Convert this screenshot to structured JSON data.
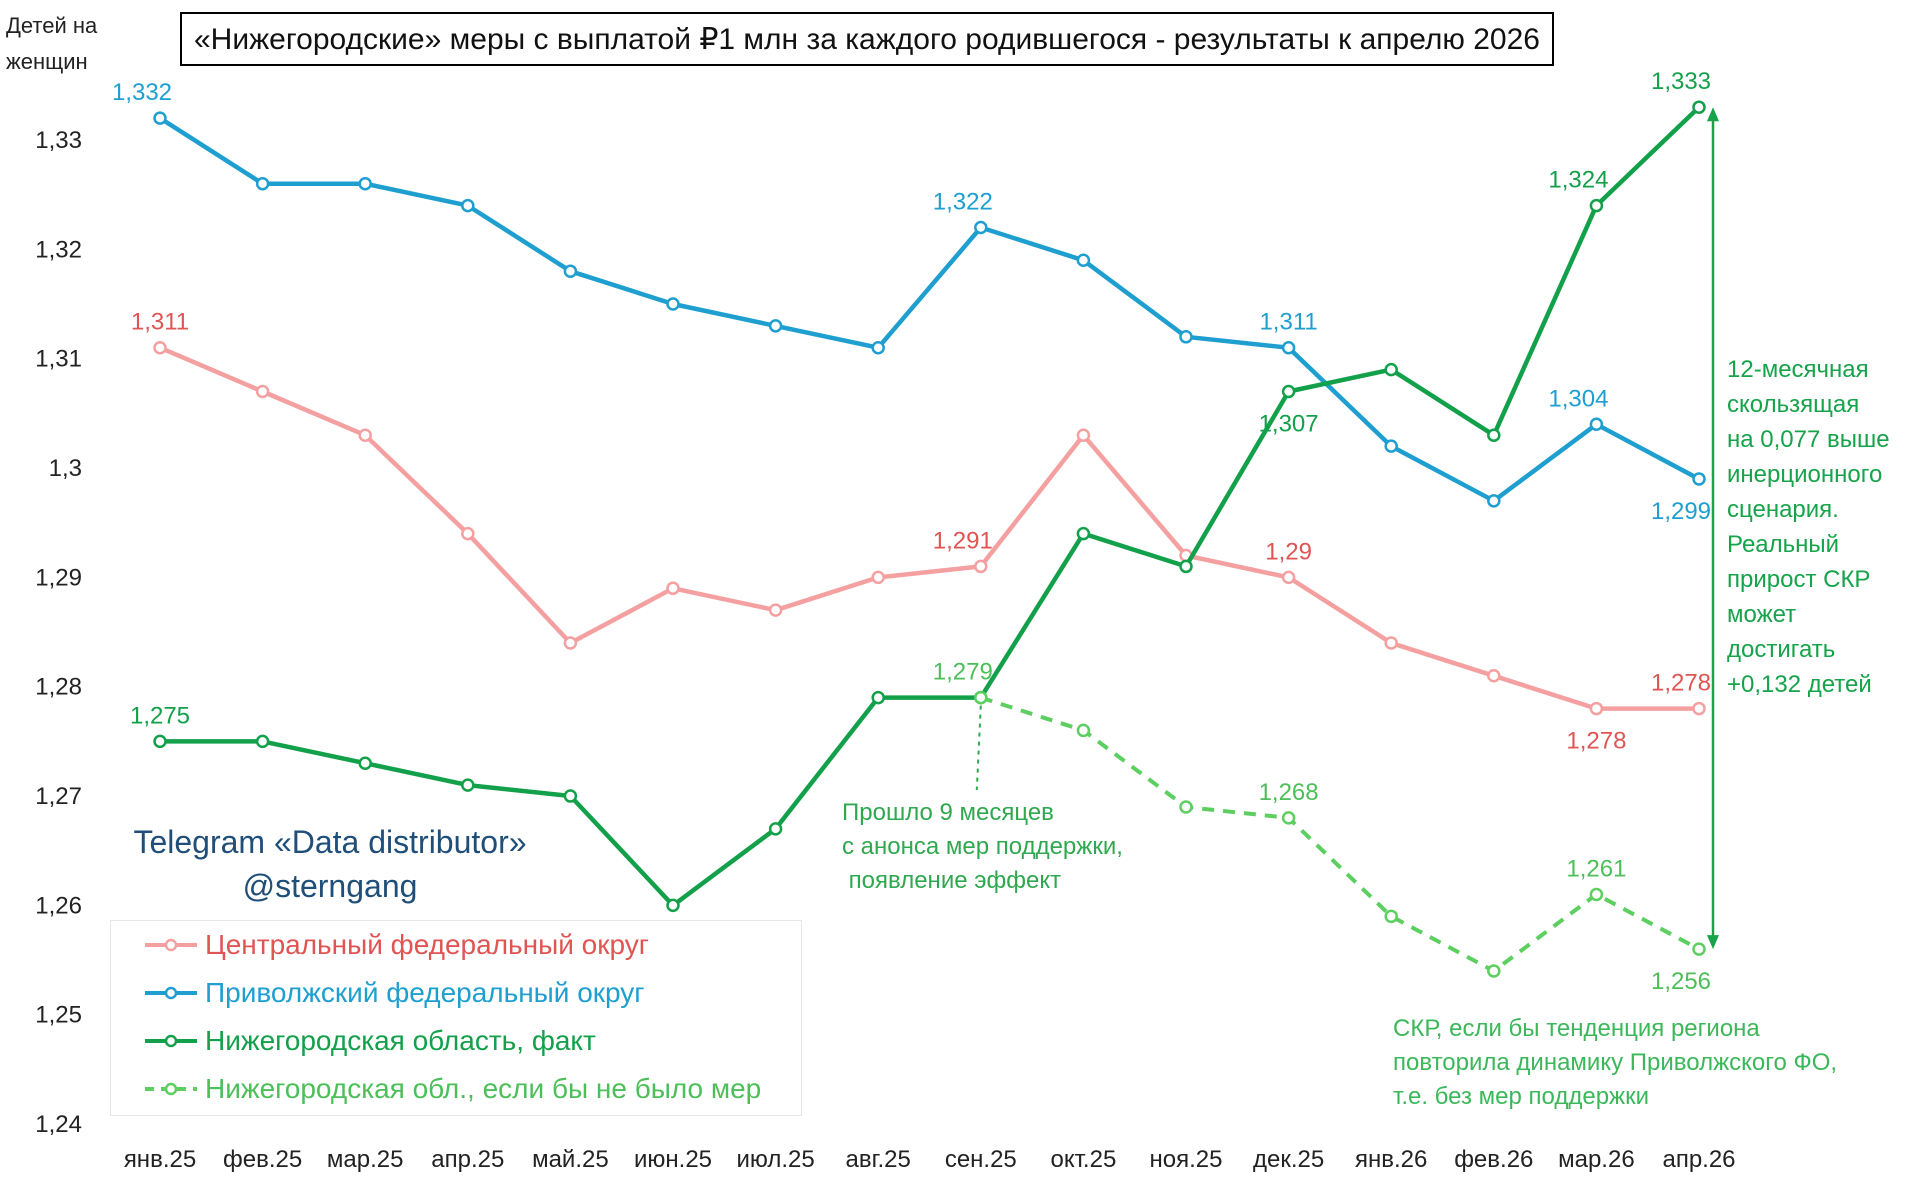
{
  "chart_data": {
    "type": "line",
    "title": "«Нижегородские» меры с выплатой ₽1 млн за каждого родившегося - результаты к апрелю 2026",
    "ylabel": "Детей на женщин",
    "xlabel": "",
    "ylim": [
      1.24,
      1.335
    ],
    "yticks": [
      {
        "value": 1.24,
        "label": "1,24"
      },
      {
        "value": 1.25,
        "label": "1,25"
      },
      {
        "value": 1.26,
        "label": "1,26"
      },
      {
        "value": 1.27,
        "label": "1,27"
      },
      {
        "value": 1.28,
        "label": "1,28"
      },
      {
        "value": 1.29,
        "label": "1,29"
      },
      {
        "value": 1.3,
        "label": "1,3"
      },
      {
        "value": 1.31,
        "label": "1,31"
      },
      {
        "value": 1.32,
        "label": "1,32"
      },
      {
        "value": 1.33,
        "label": "1,33"
      }
    ],
    "categories": [
      "янв.25",
      "фев.25",
      "мар.25",
      "апр.25",
      "май.25",
      "июн.25",
      "июл.25",
      "авг.25",
      "сен.25",
      "окт.25",
      "ноя.25",
      "дек.25",
      "янв.26",
      "фев.26",
      "мар.26",
      "апр.26"
    ],
    "grid": false,
    "legend_position": "bottom-left",
    "series": [
      {
        "name": "Центральный федеральный округ",
        "color": "#f4a0a0",
        "label_color": "#e05454",
        "dashed": false,
        "values": [
          1.311,
          1.307,
          1.303,
          1.294,
          1.284,
          1.289,
          1.287,
          1.29,
          1.291,
          1.303,
          1.292,
          1.29,
          1.284,
          1.281,
          1.278,
          1.278
        ],
        "data_labels": [
          {
            "index": 0,
            "text": "1,311",
            "pos": "above"
          },
          {
            "index": 8,
            "text": "1,291",
            "pos": "above-left"
          },
          {
            "index": 11,
            "text": "1,29",
            "pos": "above"
          },
          {
            "index": 14,
            "text": "1,278",
            "pos": "below"
          },
          {
            "index": 15,
            "text": "1,278",
            "pos": "above-left"
          }
        ]
      },
      {
        "name": "Приволжский федеральный округ",
        "color": "#1e9fd0",
        "label_color": "#1e9fd0",
        "dashed": false,
        "values": [
          1.332,
          1.326,
          1.326,
          1.324,
          1.318,
          1.315,
          1.313,
          1.311,
          1.322,
          1.319,
          1.312,
          1.311,
          1.302,
          1.297,
          1.304,
          1.299
        ],
        "data_labels": [
          {
            "index": 0,
            "text": "1,332",
            "pos": "above-left"
          },
          {
            "index": 8,
            "text": "1,322",
            "pos": "above-left"
          },
          {
            "index": 11,
            "text": "1,311",
            "pos": "above"
          },
          {
            "index": 14,
            "text": "1,304",
            "pos": "above-left"
          },
          {
            "index": 15,
            "text": "1,299",
            "pos": "below-left"
          }
        ]
      },
      {
        "name": "Нижегородская область, факт",
        "color": "#13a04a",
        "label_color": "#13a04a",
        "dashed": false,
        "values": [
          1.275,
          1.275,
          1.273,
          1.271,
          1.27,
          1.26,
          1.267,
          1.279,
          1.279,
          1.294,
          1.291,
          1.307,
          1.309,
          1.303,
          1.324,
          1.333
        ],
        "data_labels": [
          {
            "index": 0,
            "text": "1,275",
            "pos": "above"
          },
          {
            "index": 11,
            "text": "1,307",
            "pos": "below"
          },
          {
            "index": 14,
            "text": "1,324",
            "pos": "above-left"
          },
          {
            "index": 15,
            "text": "1,333",
            "pos": "above-left"
          }
        ]
      },
      {
        "name": "Нижегородская обл., если бы не было мер",
        "color": "#5ccf60",
        "label_color": "#4cbf58",
        "dashed": true,
        "start_index": 8,
        "values": [
          null,
          null,
          null,
          null,
          null,
          null,
          null,
          null,
          1.279,
          1.276,
          1.269,
          1.268,
          1.259,
          1.254,
          1.261,
          1.256
        ],
        "data_labels": [
          {
            "index": 8,
            "text": "1,279",
            "pos": "above-left"
          },
          {
            "index": 11,
            "text": "1,268",
            "pos": "above"
          },
          {
            "index": 14,
            "text": "1,261",
            "pos": "above"
          },
          {
            "index": 15,
            "text": "1,256",
            "pos": "below-left"
          }
        ]
      }
    ],
    "annotations": {
      "right": [
        "12-месячная",
        "скользящая",
        "на 0,077 выше",
        "инерционного",
        "сценария.",
        "Реальный",
        "прирост СКР",
        "может",
        "достигать",
        "+0,132 детей"
      ],
      "middle": [
        "Прошло 9 месяцев",
        "с анонса мер поддержки,",
        " появление эффект"
      ],
      "bottom": [
        "СКР, если бы тенденция региона",
        "повторила динамику Приволжского ФО,",
        "т.е. без мер поддержки"
      ],
      "watermark": [
        "Telegram «Data distributor»",
        "@sterngang"
      ]
    }
  }
}
